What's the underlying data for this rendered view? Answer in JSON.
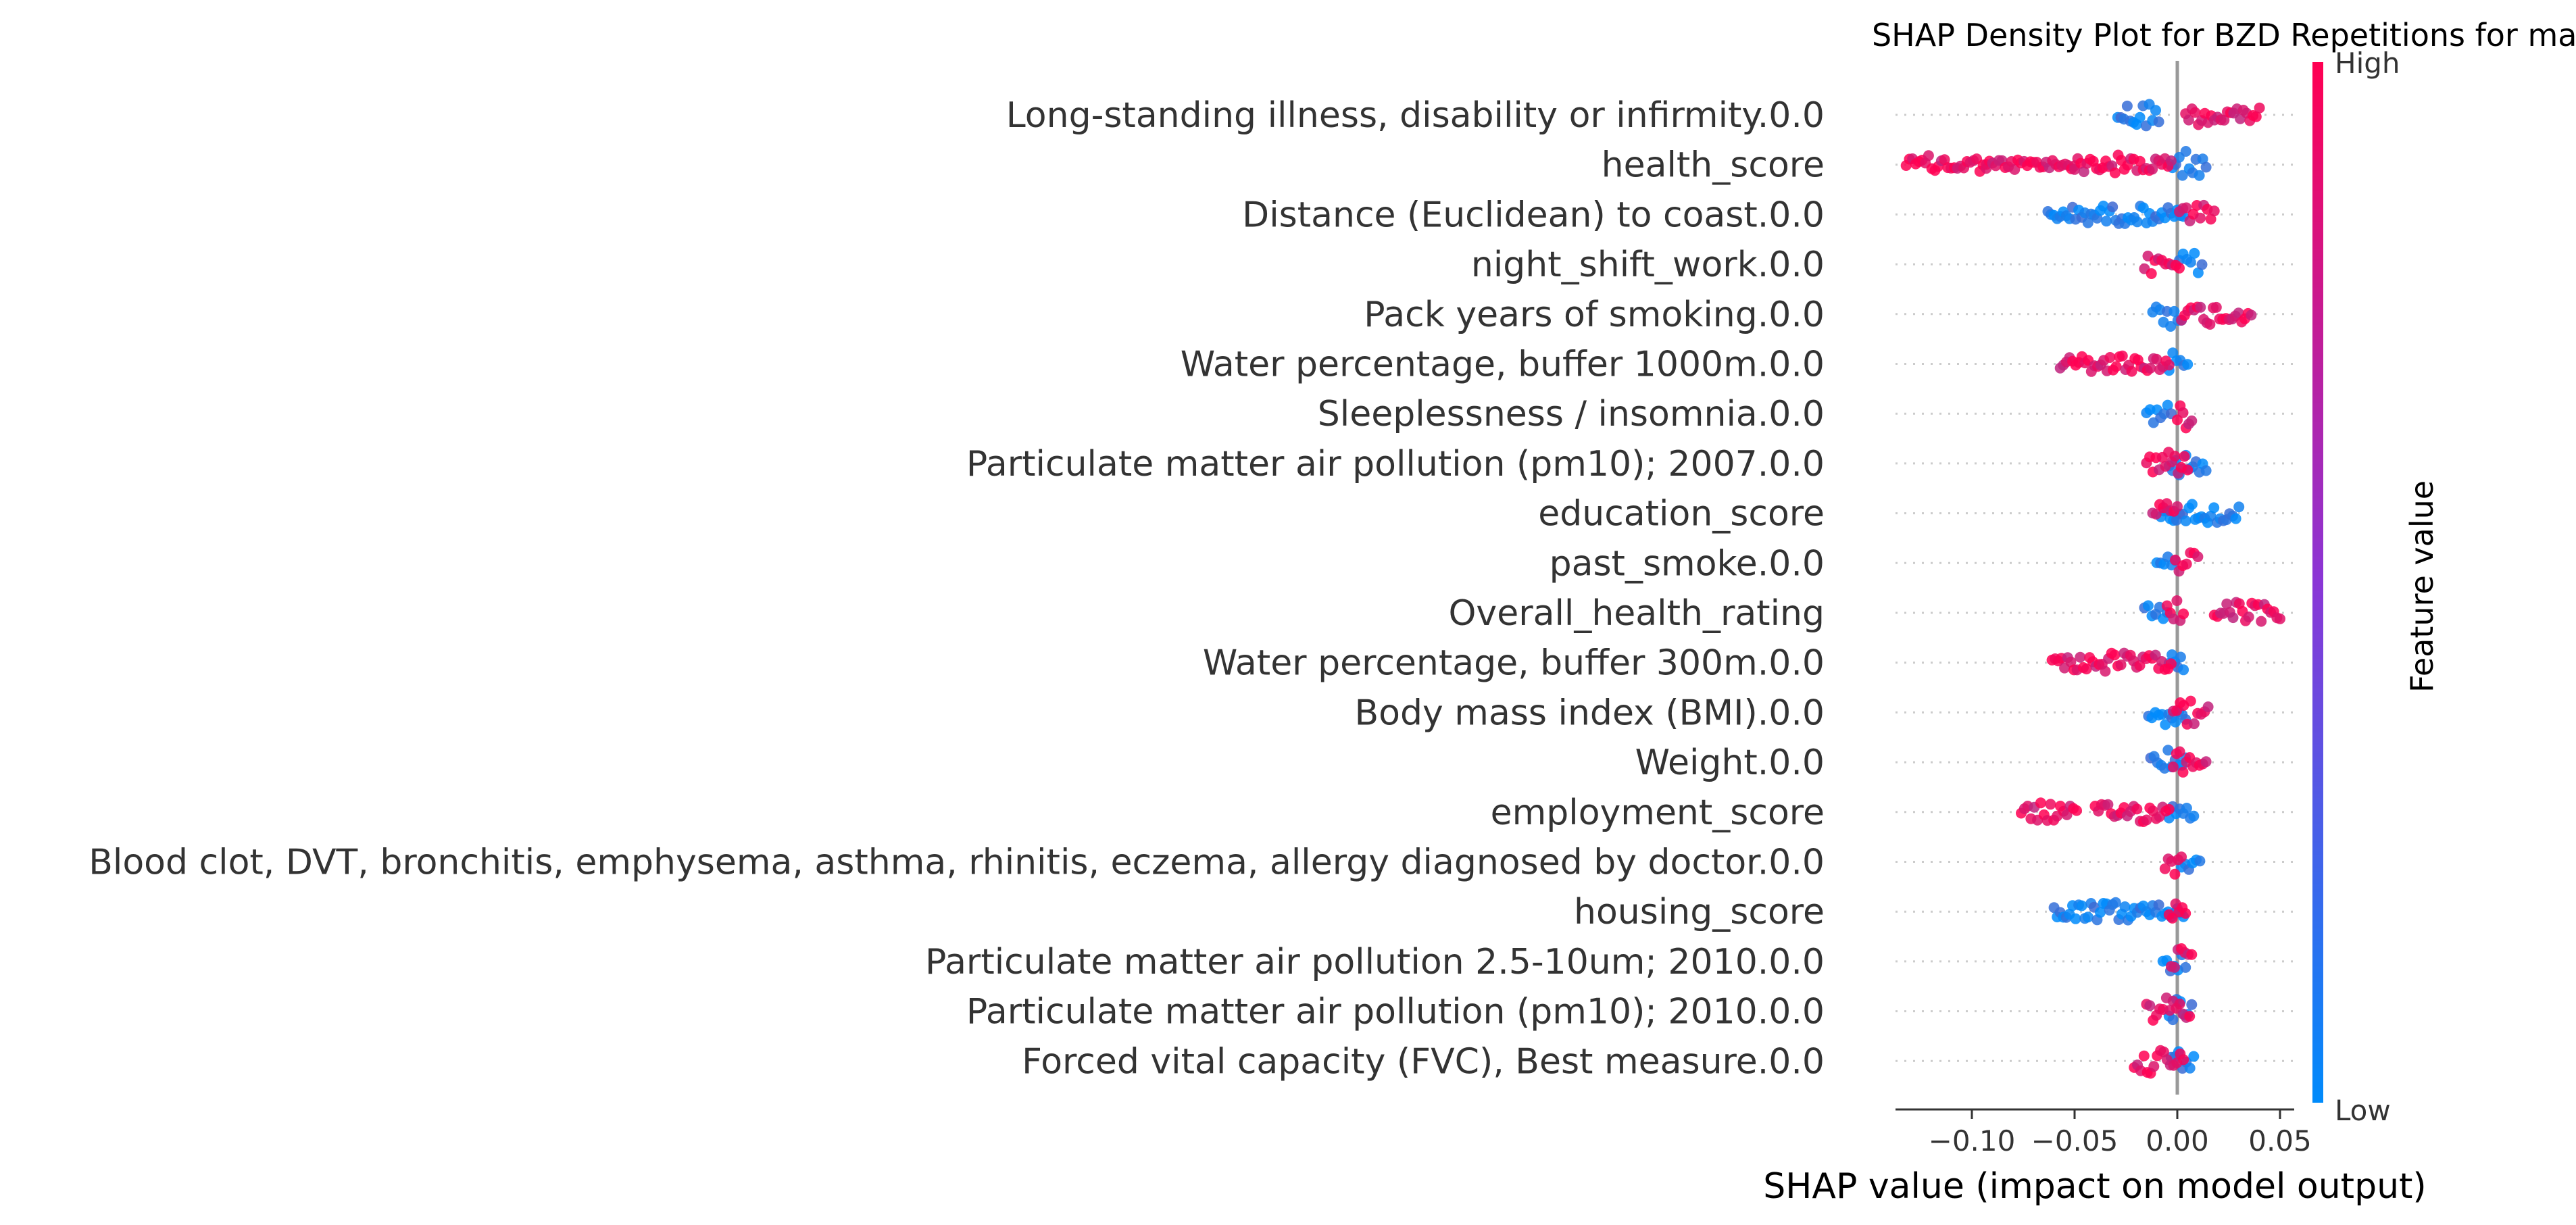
{
  "chart_data": {
    "type": "scatter",
    "title": "SHAP Density Plot for BZD Repetitions for male no_anx",
    "xlabel": "SHAP value (impact on model output)",
    "ylabel": "",
    "xlim": [
      -0.137,
      0.057
    ],
    "x_ticks": [
      -0.1,
      -0.05,
      0.0,
      0.05
    ],
    "x_tick_labels": [
      "−0.10",
      "−0.05",
      "0.00",
      "0.05"
    ],
    "colorbar": {
      "title": "Feature value",
      "high_label": "High",
      "low_label": "Low",
      "low_color": "#008bfb",
      "high_color": "#ff0052"
    },
    "features": [
      {
        "name": "Long-standing illness, disability or infirmity.0.0",
        "low": [
          [
            -0.029,
            -0.009,
            1.0
          ]
        ],
        "high": [
          [
            0.004,
            0.04,
            0.75
          ]
        ]
      },
      {
        "name": "health_score",
        "low": [
          [
            -0.004,
            0.014,
            0.8
          ]
        ],
        "high": [
          [
            -0.132,
            -0.093,
            0.5
          ],
          [
            -0.093,
            -0.05,
            0.15
          ],
          [
            -0.05,
            -0.003,
            0.5
          ]
        ]
      },
      {
        "name": "Distance (Euclidean) to coast.0.0",
        "low": [
          [
            -0.063,
            0.003,
            0.45
          ]
        ],
        "high": [
          [
            0.001,
            0.018,
            0.5
          ]
        ]
      },
      {
        "name": "night_shift_work.0.0",
        "low": [
          [
            0.001,
            0.012,
            0.8
          ]
        ],
        "high": [
          [
            -0.016,
            0.001,
            0.8
          ]
        ]
      },
      {
        "name": "Pack years of smoking.0.0",
        "low": [
          [
            -0.012,
            0.002,
            0.8
          ]
        ],
        "high": [
          [
            0.002,
            0.036,
            0.6
          ]
        ]
      },
      {
        "name": "Water percentage, buffer 1000m.0.0",
        "low": [
          [
            -0.004,
            0.005,
            0.8
          ]
        ],
        "high": [
          [
            -0.057,
            -0.004,
            0.5
          ]
        ]
      },
      {
        "name": "Sleeplessness / insomnia.0.0",
        "low": [
          [
            -0.015,
            -0.003,
            0.6
          ]
        ],
        "high": [
          [
            0.0,
            0.007,
            0.9
          ]
        ]
      },
      {
        "name": "Particulate matter air pollution (pm10); 2007.0.0",
        "low": [
          [
            -0.004,
            0.014,
            0.8
          ]
        ],
        "high": [
          [
            -0.015,
            0.005,
            0.8
          ]
        ]
      },
      {
        "name": "education_score",
        "low": [
          [
            -0.008,
            0.03,
            0.55
          ]
        ],
        "high": [
          [
            -0.012,
            0.0,
            0.7
          ]
        ]
      },
      {
        "name": "past_smoke.0.0",
        "low": [
          [
            -0.01,
            -0.001,
            0.7
          ]
        ],
        "high": [
          [
            -0.001,
            0.01,
            0.8
          ]
        ]
      },
      {
        "name": "Overall_health_rating",
        "low": [
          [
            -0.016,
            -0.005,
            0.4
          ]
        ],
        "high": [
          [
            -0.005,
            0.003,
            0.8
          ],
          [
            0.018,
            0.05,
            0.6
          ]
        ]
      },
      {
        "name": "Water percentage, buffer 300m.0.0",
        "low": [
          [
            -0.004,
            0.003,
            0.8
          ]
        ],
        "high": [
          [
            -0.061,
            -0.003,
            0.5
          ]
        ]
      },
      {
        "name": "Body mass index (BMI).0.0",
        "low": [
          [
            -0.014,
            0.004,
            0.8
          ]
        ],
        "high": [
          [
            -0.002,
            0.015,
            0.75
          ]
        ]
      },
      {
        "name": "Weight.0.0",
        "low": [
          [
            -0.013,
            0.004,
            0.8
          ]
        ],
        "high": [
          [
            -0.002,
            0.014,
            0.75
          ]
        ]
      },
      {
        "name": "employment_score",
        "low": [
          [
            -0.004,
            0.008,
            0.7
          ]
        ],
        "high": [
          [
            -0.076,
            -0.049,
            0.5
          ],
          [
            -0.04,
            -0.004,
            0.55
          ]
        ]
      },
      {
        "name": "Blood clot, DVT, bronchitis, emphysema, asthma, rhinitis, eczema, allergy diagnosed by doctor.0.0",
        "low": [
          [
            0.002,
            0.011,
            0.7
          ]
        ],
        "high": [
          [
            -0.006,
            0.002,
            0.8
          ]
        ]
      },
      {
        "name": "housing_score",
        "low": [
          [
            -0.06,
            0.003,
            0.45
          ]
        ],
        "high": [
          [
            -0.004,
            0.004,
            0.7
          ]
        ]
      },
      {
        "name": "Particulate matter air pollution 2.5-10um; 2010.0.0",
        "low": [
          [
            -0.007,
            0.004,
            0.8
          ]
        ],
        "high": [
          [
            -0.003,
            0.007,
            0.8
          ]
        ]
      },
      {
        "name": "Particulate matter air pollution (pm10); 2010.0.0",
        "low": [
          [
            -0.004,
            0.007,
            0.8
          ]
        ],
        "high": [
          [
            -0.015,
            0.006,
            0.8
          ]
        ]
      },
      {
        "name": "Forced vital capacity (FVC), Best measure.0.0",
        "low": [
          [
            -0.003,
            0.008,
            0.8
          ]
        ],
        "high": [
          [
            -0.021,
            0.003,
            0.8
          ]
        ]
      }
    ]
  }
}
